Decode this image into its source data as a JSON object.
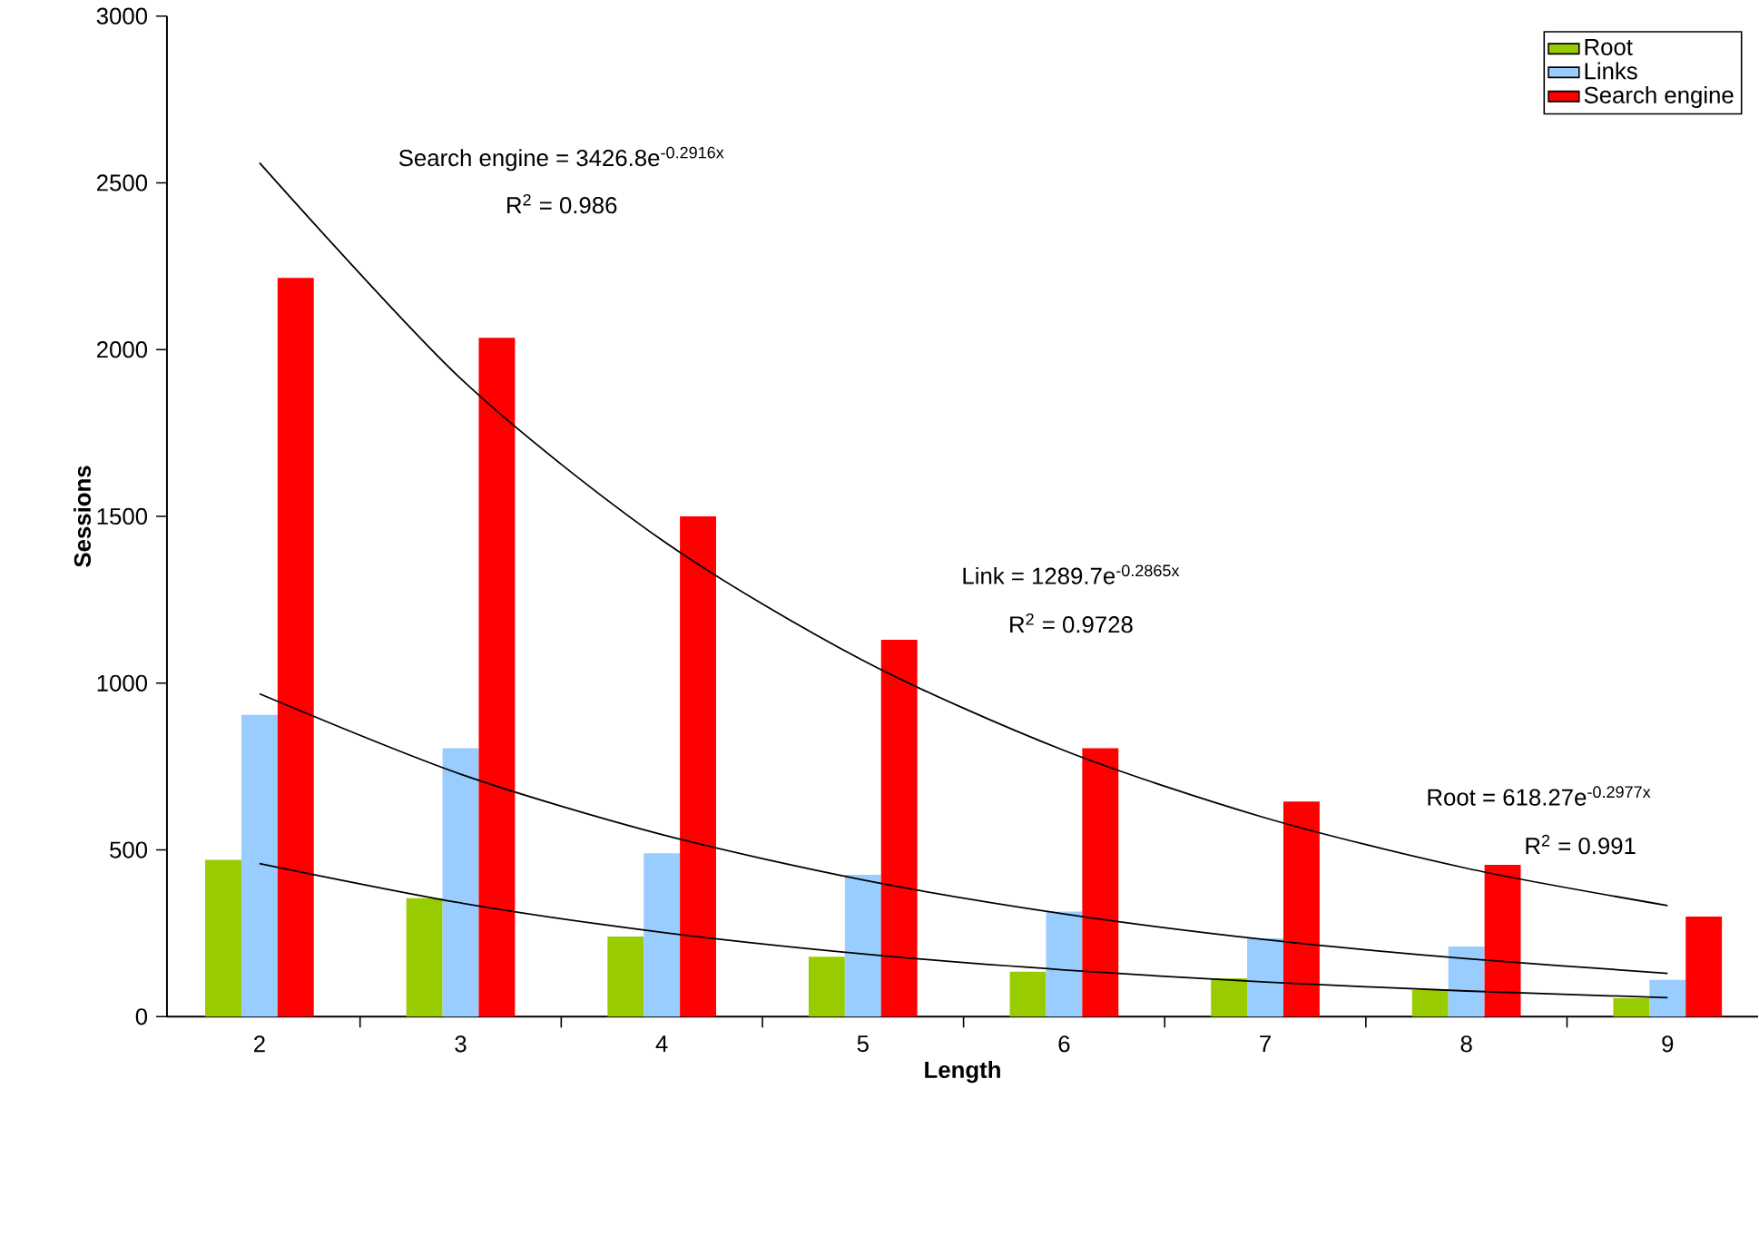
{
  "chart_data": {
    "type": "bar",
    "xlabel": "Length",
    "ylabel": "Sessions",
    "categories": [
      "2",
      "3",
      "4",
      "5",
      "6",
      "7",
      "8",
      "9"
    ],
    "series": [
      {
        "name": "Root",
        "color": "#99cc00",
        "values": [
          470,
          355,
          240,
          180,
          135,
          115,
          80,
          55
        ]
      },
      {
        "name": "Links",
        "color": "#99ccff",
        "values": [
          905,
          805,
          490,
          425,
          315,
          235,
          210,
          110
        ]
      },
      {
        "name": "Search engine",
        "color": "#ff0000",
        "values": [
          2215,
          2035,
          1500,
          1130,
          805,
          645,
          455,
          300
        ]
      },
      {
        "type": "line",
        "color": "#000000",
        "values": [
          2560,
          1913,
          1429,
          1068,
          798,
          596,
          445,
          333
        ]
      },
      {
        "type": "line",
        "color": "#000000",
        "values": [
          968,
          727,
          546,
          410,
          308,
          231,
          174,
          130
        ]
      },
      {
        "type": "line",
        "color": "#000000",
        "values": [
          459,
          341,
          253,
          188,
          140,
          104,
          77,
          57
        ]
      }
    ],
    "ylim": [
      0,
      3000
    ],
    "yticks": [
      0,
      500,
      1000,
      1500,
      2000,
      2500,
      3000
    ],
    "legend": "top right",
    "annotations": [
      "Search engine = 3426.8e$^{-0.2916x}$",
      "R$^{2}$ = 0.986",
      "Link = 1289.7e$^{-0.2865x}$",
      "R$^{2}$ = 0.9728",
      "Root = 618.27e$^{-0.2977x}$",
      "R$^{2}$ = 0.991"
    ]
  }
}
